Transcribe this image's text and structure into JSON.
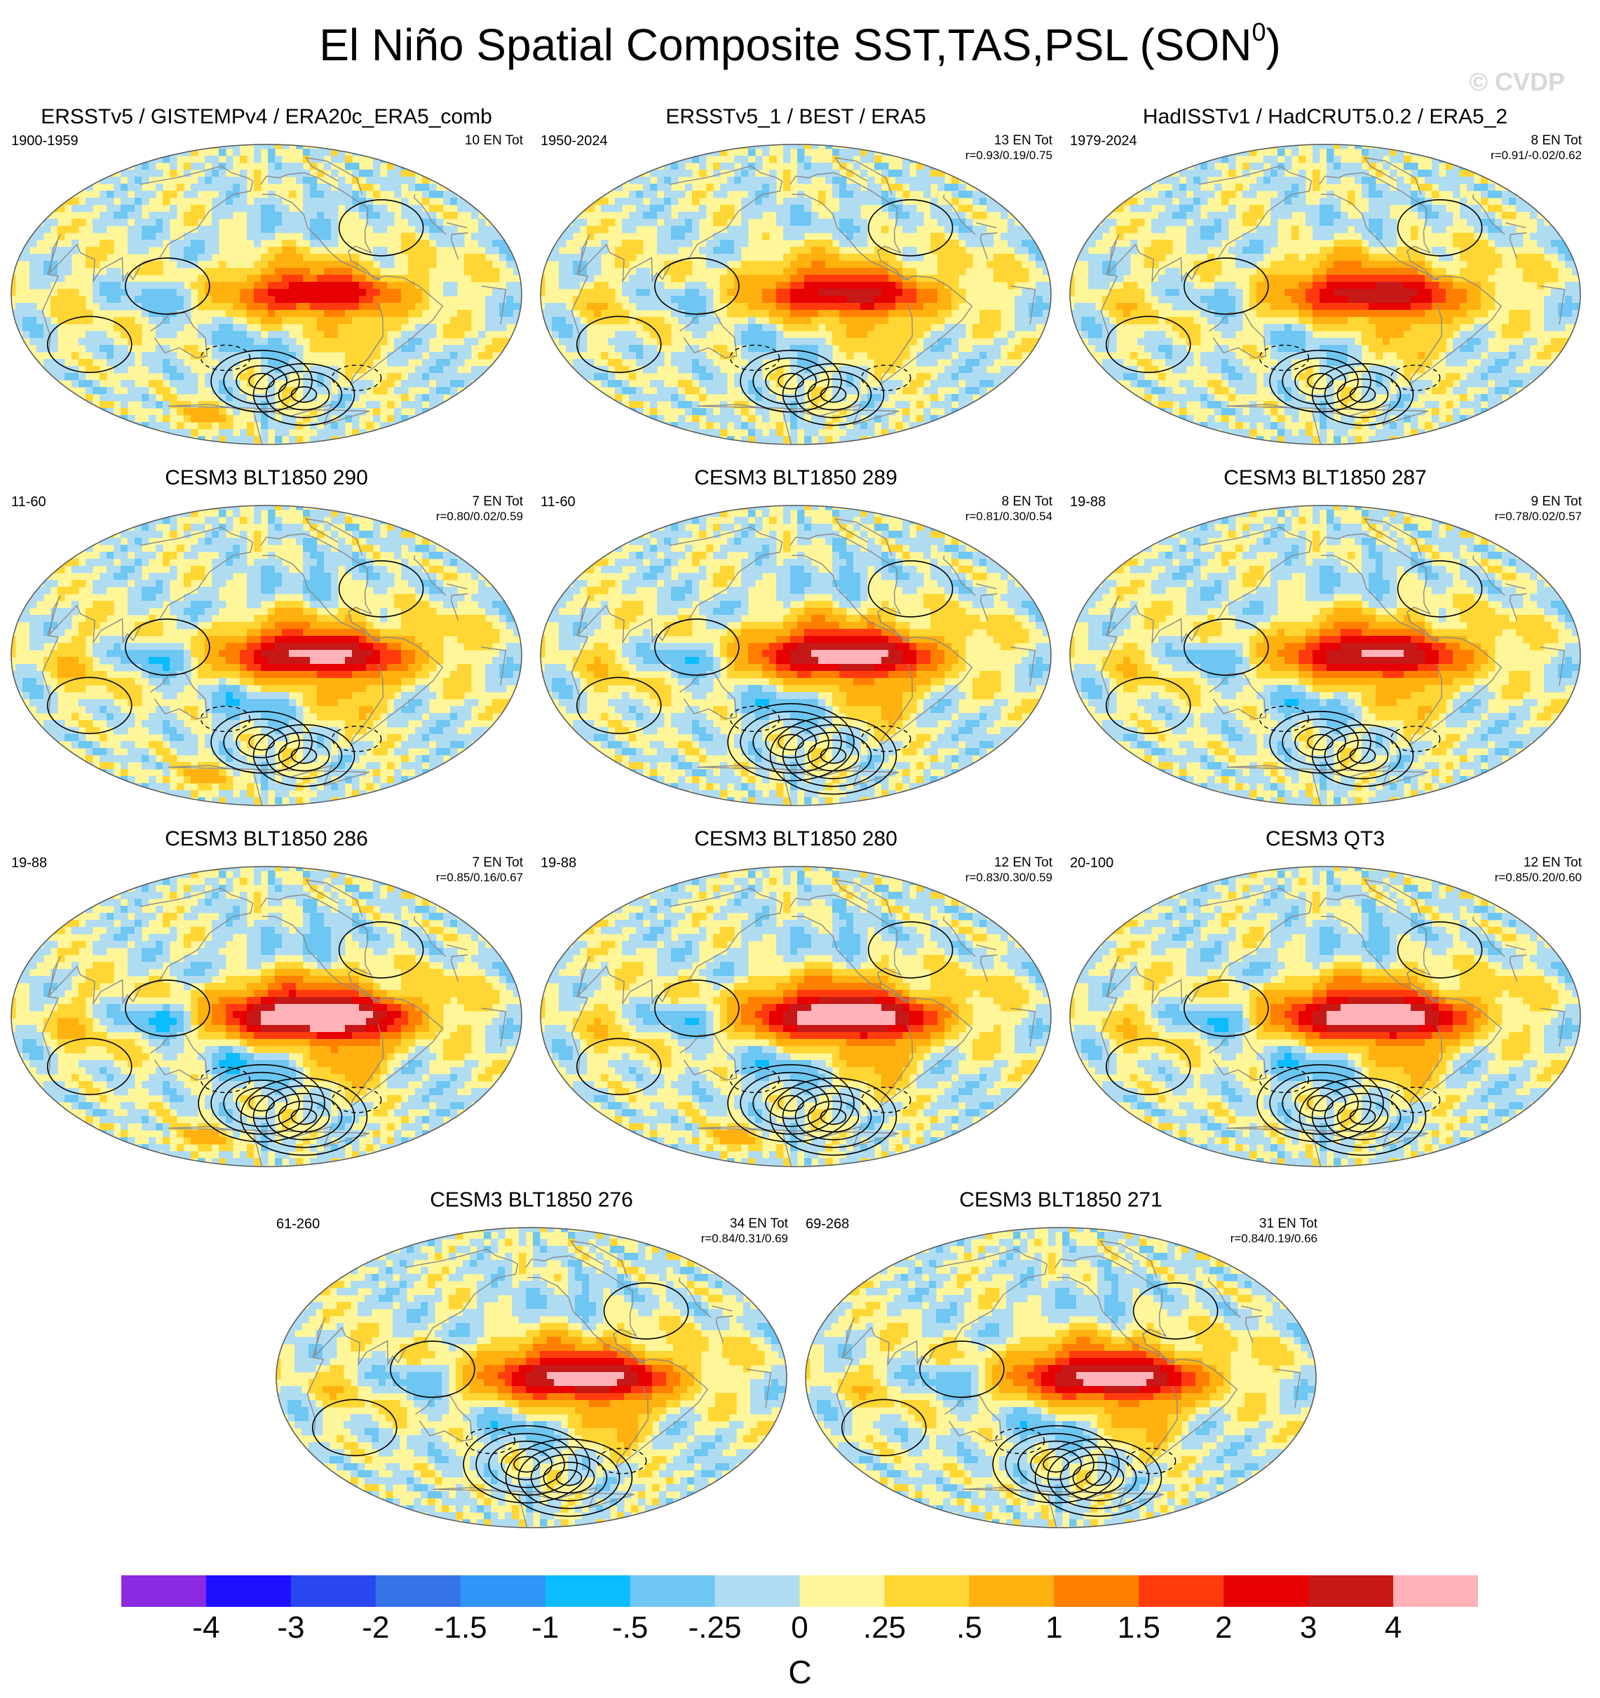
{
  "title": {
    "text": "El Niño Spatial Composite SST,TAS,PSL (SON",
    "superscript": "0",
    "suffix": ")"
  },
  "copyright": "© CVDP",
  "panels": [
    {
      "title": "ERSSTv5 / GISTEMPv4 / ERA20c_ERA5_comb",
      "years": "1900-1959",
      "count": "10 EN Tot",
      "stats": "",
      "intensity": 0.9,
      "pacific_tongue": 0.8,
      "atlantic": 0.4,
      "bands": 0.6,
      "polar_warm": true
    },
    {
      "title": "ERSSTv5_1 / BEST / ERA5",
      "years": "1950-2024",
      "count": "13 EN Tot",
      "stats": "r=0.93/0.19/0.75",
      "intensity": 1.0,
      "pacific_tongue": 0.9,
      "atlantic": 0.5,
      "bands": 0.5,
      "polar_warm": false
    },
    {
      "title": "HadISSTv1 / HadCRUT5.0.2 / ERA5_2",
      "years": "1979-2024",
      "count": "8 EN Tot",
      "stats": "r=0.91/-0.02/0.62",
      "intensity": 1.1,
      "pacific_tongue": 0.9,
      "atlantic": 0.5,
      "bands": 0.5,
      "polar_warm": false
    },
    {
      "title": "CESM3 BLT1850 290",
      "years": "11-60",
      "count": "7 EN Tot",
      "stats": "r=0.80/0.02/0.59",
      "intensity": 1.2,
      "pacific_tongue": 1.1,
      "atlantic": 0.7,
      "bands": 0.8,
      "polar_warm": true
    },
    {
      "title": "CESM3 BLT1850 289",
      "years": "11-60",
      "count": "8 EN Tot",
      "stats": "r=0.81/0.30/0.54",
      "intensity": 1.3,
      "pacific_tongue": 1.1,
      "atlantic": 0.6,
      "bands": 0.8,
      "polar_warm": false
    },
    {
      "title": "CESM3 BLT1850 287",
      "years": "19-88",
      "count": "9 EN Tot",
      "stats": "r=0.78/0.02/0.57",
      "intensity": 1.2,
      "pacific_tongue": 1.0,
      "atlantic": 0.6,
      "bands": 0.7,
      "polar_warm": false
    },
    {
      "title": "CESM3 BLT1850 286",
      "years": "19-88",
      "count": "7 EN Tot",
      "stats": "r=0.85/0.16/0.67",
      "intensity": 1.6,
      "pacific_tongue": 1.3,
      "atlantic": 0.7,
      "bands": 1.0,
      "polar_warm": true
    },
    {
      "title": "CESM3 BLT1850 280",
      "years": "19-88",
      "count": "12 EN Tot",
      "stats": "r=0.83/0.30/0.59",
      "intensity": 1.5,
      "pacific_tongue": 1.2,
      "atlantic": 0.6,
      "bands": 0.8,
      "polar_warm": true
    },
    {
      "title": "CESM3 QT3",
      "years": "20-100",
      "count": "12 EN Tot",
      "stats": "r=0.85/0.20/0.60",
      "intensity": 1.5,
      "pacific_tongue": 1.2,
      "atlantic": 0.6,
      "bands": 0.9,
      "polar_warm": false
    },
    {
      "title": "CESM3 BLT1850 276",
      "years": "61-260",
      "count": "34 EN Tot",
      "stats": "r=0.84/0.31/0.69",
      "intensity": 1.3,
      "pacific_tongue": 1.1,
      "atlantic": 0.5,
      "bands": 0.7,
      "polar_warm": false
    },
    {
      "title": "CESM3 BLT1850 271",
      "years": "69-268",
      "count": "31 EN Tot",
      "stats": "r=0.84/0.19/0.66",
      "intensity": 1.3,
      "pacific_tongue": 1.1,
      "atlantic": 0.5,
      "bands": 0.7,
      "polar_warm": false
    }
  ],
  "colorbar": {
    "colors": [
      "#8a2be2",
      "#1e0fff",
      "#2a47ef",
      "#3673e9",
      "#2f95f6",
      "#0bbcff",
      "#6ec6f2",
      "#b0dcf2",
      "#fff69a",
      "#ffd633",
      "#ffb10f",
      "#ff7f00",
      "#ff3b0d",
      "#e60000",
      "#c71818",
      "#ffb3b8"
    ],
    "labels": [
      "-4",
      "-3",
      "-2",
      "-1.5",
      "-1",
      "-.5",
      "-.25",
      "0",
      ".25",
      ".5",
      "1",
      "1.5",
      "2",
      "3",
      "4"
    ],
    "units": "C"
  }
}
